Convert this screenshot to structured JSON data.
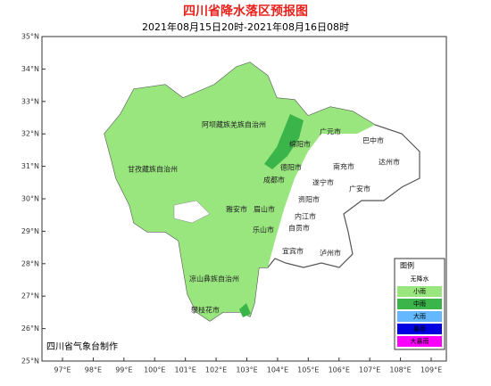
{
  "header": {
    "title": "四川省降水落区预报图",
    "subtitle": "2021年08月15日20时-2021年08月16日08时"
  },
  "axes": {
    "lat_labels": [
      "35°N",
      "34°N",
      "33°N",
      "32°N",
      "31°N",
      "30°N",
      "29°N",
      "28°N",
      "27°N",
      "26°N",
      "25°N"
    ],
    "lon_labels": [
      "97°E",
      "98°E",
      "99°E",
      "100°E",
      "101°E",
      "102°E",
      "103°E",
      "104°E",
      "105°E",
      "106°E",
      "107°E",
      "108°E",
      "109°E"
    ]
  },
  "cities": [
    "阿坝藏族羌族自治州",
    "广元市",
    "巴中市",
    "绵阳市",
    "甘孜藏族自治州",
    "德阳市",
    "南充市",
    "达州市",
    "成都市",
    "遂宁市",
    "广安市",
    "雅安市",
    "眉山市",
    "资阳市",
    "内江市",
    "乐山市",
    "自贡市",
    "宜宾市",
    "泸州市",
    "凉山彝族自治州",
    "攀枝花市"
  ],
  "legend": {
    "title": "图例",
    "items": [
      {
        "label": "无降水",
        "color": "#ffffff"
      },
      {
        "label": "小雨",
        "color": "#99e67f"
      },
      {
        "label": "中雨",
        "color": "#3bb54a"
      },
      {
        "label": "大雨",
        "color": "#63b8ff"
      },
      {
        "label": "暴雨",
        "color": "#0000e0"
      },
      {
        "label": "大暴雨",
        "color": "#ff00ff"
      }
    ]
  },
  "credit": "四川省气象台制作"
}
